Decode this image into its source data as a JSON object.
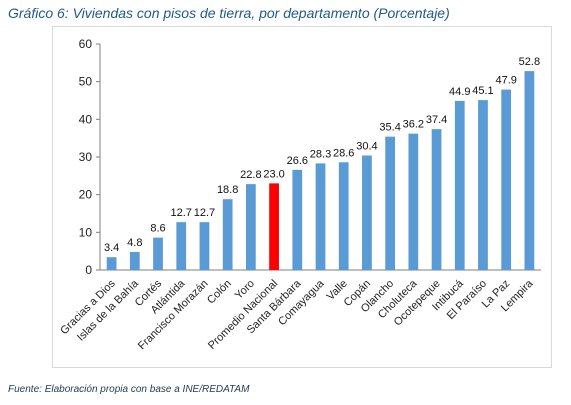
{
  "title": "Gráfico 6: Viviendas con pisos de tierra, por departamento (Porcentaje)",
  "source": "Fuente: Elaboración propia con base a INE/REDATAM",
  "colors": {
    "bar": "#5b9bd5",
    "highlight": "#ff0000",
    "axis": "#7f7f7f"
  },
  "chart_data": {
    "type": "bar",
    "title": "Gráfico 6: Viviendas con pisos de tierra, por departamento (Porcentaje)",
    "xlabel": "",
    "ylabel": "",
    "ylim": [
      0,
      60
    ],
    "yticks": [
      0,
      10,
      20,
      30,
      40,
      50,
      60
    ],
    "grid": false,
    "legend": "none",
    "highlight_category": "Promedio Nacional",
    "categories": [
      "Gracias a Dios",
      "Islas de la Bahía",
      "Cortés",
      "Atlántida",
      "Francisco Morazán",
      "Colón",
      "Yoro",
      "Promedio Nacional",
      "Santa Bárbara",
      "Comayagua",
      "Valle",
      "Copán",
      "Olancho",
      "Choluteca",
      "Ocotepeque",
      "Intibucá",
      "El Paraíso",
      "La Paz",
      "Lempira"
    ],
    "values": [
      3.4,
      4.8,
      8.6,
      12.7,
      12.7,
      18.8,
      22.8,
      23.0,
      26.6,
      28.3,
      28.6,
      30.4,
      35.4,
      36.2,
      37.4,
      44.9,
      45.1,
      47.9,
      52.8
    ],
    "value_labels": [
      "3.4",
      "4.8",
      "8.6",
      "12.7",
      "12.7",
      "18.8",
      "22.8",
      "23.0",
      "26.6",
      "28.3",
      "28.6",
      "30.4",
      "35.4",
      "36.2",
      "37.4",
      "44.9",
      "45.1",
      "47.9",
      "52.8"
    ]
  }
}
